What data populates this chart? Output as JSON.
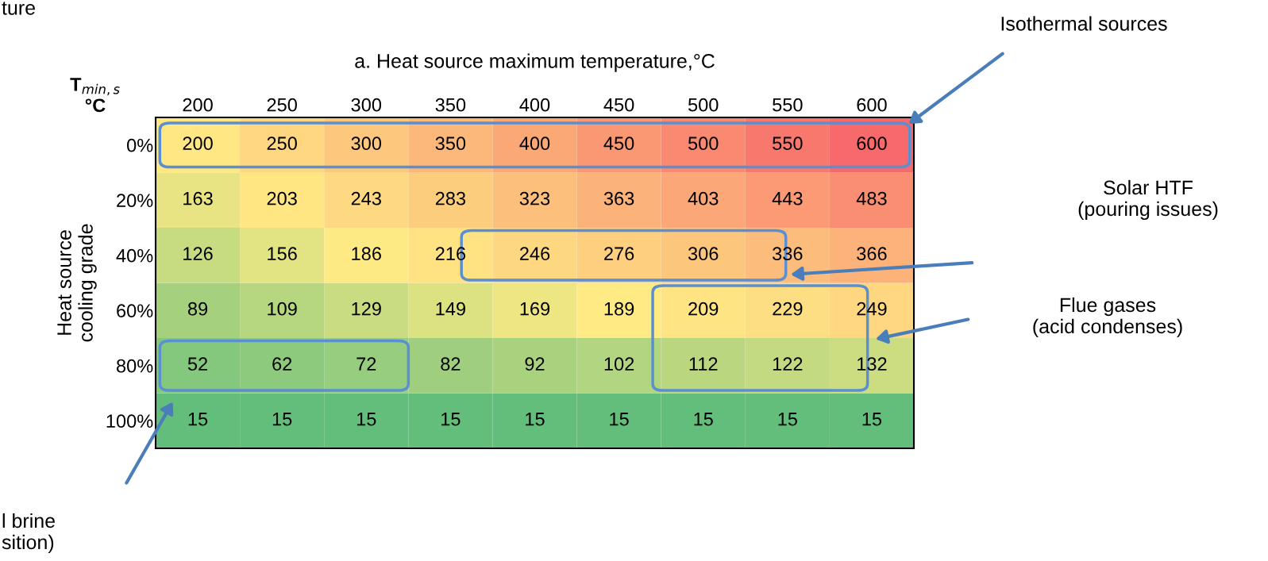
{
  "chart_data": {
    "type": "heatmap",
    "title": "a. Heat source maximum temperature,°C",
    "ylabel": "Heat source\ncooling grade",
    "categories": [
      "200",
      "250",
      "300",
      "350",
      "400",
      "450",
      "500",
      "550",
      "600"
    ],
    "y_categories": [
      "0%",
      "20%",
      "40%",
      "60%",
      "80%",
      "100%"
    ],
    "cells": [
      [
        200,
        250,
        300,
        350,
        400,
        450,
        500,
        550,
        600
      ],
      [
        163,
        203,
        243,
        283,
        323,
        363,
        403,
        443,
        483
      ],
      [
        126,
        156,
        186,
        216,
        246,
        276,
        306,
        336,
        366
      ],
      [
        89,
        109,
        129,
        149,
        169,
        189,
        209,
        229,
        249
      ],
      [
        52,
        62,
        72,
        82,
        92,
        102,
        112,
        122,
        132
      ],
      [
        15,
        15,
        15,
        15,
        15,
        15,
        15,
        15,
        15
      ]
    ],
    "data_labels": true,
    "colors": [
      "#63be7b",
      "#ffeb84",
      "#f8696b"
    ],
    "annotations": [
      "T$_{min,s}$\n°C",
      "Isothermal sources",
      "Solar HTF\n(pouring issues)",
      "Flue gases\n(acid condenses)",
      "l brine\nsition)",
      "ture"
    ]
  }
}
